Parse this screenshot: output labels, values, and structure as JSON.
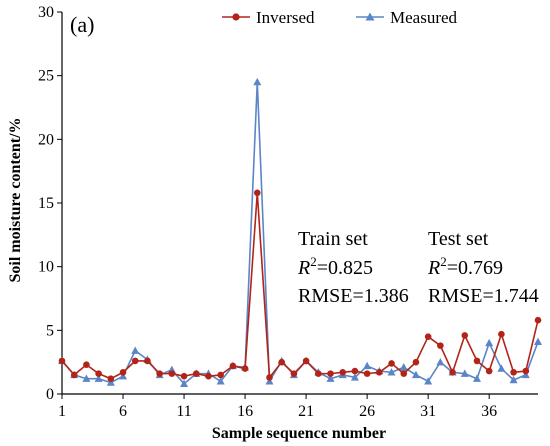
{
  "chart_data": {
    "type": "line",
    "panel_label": "(a)",
    "xlabel": "Sample sequence number",
    "ylabel": "Soil moisture content/%",
    "xlim": [
      1,
      40
    ],
    "ylim": [
      0,
      30
    ],
    "x_ticks": [
      1,
      6,
      11,
      16,
      21,
      26,
      31,
      36
    ],
    "y_ticks": [
      0,
      5,
      10,
      15,
      20,
      25,
      30
    ],
    "grid": false,
    "legend_position": "top-right",
    "x": [
      1,
      2,
      3,
      4,
      5,
      6,
      7,
      8,
      9,
      10,
      11,
      12,
      13,
      14,
      15,
      16,
      17,
      18,
      19,
      20,
      21,
      22,
      23,
      24,
      25,
      26,
      27,
      28,
      29,
      30,
      31,
      32,
      33,
      34,
      35,
      36,
      37,
      38,
      39,
      40
    ],
    "series": [
      {
        "name": "Inversed",
        "color": "#b22418",
        "marker": "circle",
        "values": [
          2.6,
          1.5,
          2.3,
          1.6,
          1.2,
          1.7,
          2.6,
          2.6,
          1.6,
          1.6,
          1.4,
          1.6,
          1.4,
          1.5,
          2.2,
          2.0,
          15.8,
          1.3,
          2.5,
          1.6,
          2.6,
          1.6,
          1.6,
          1.7,
          1.8,
          1.6,
          1.7,
          2.4,
          1.6,
          2.5,
          4.5,
          3.8,
          1.7,
          4.6,
          2.6,
          1.8,
          4.7,
          1.7,
          1.8,
          5.8
        ]
      },
      {
        "name": "Measured",
        "color": "#5b85c6",
        "marker": "triangle",
        "values": [
          2.6,
          1.5,
          1.2,
          1.2,
          0.9,
          1.4,
          3.4,
          2.7,
          1.5,
          1.9,
          0.8,
          1.6,
          1.6,
          1.0,
          2.2,
          2.1,
          24.5,
          1.0,
          2.6,
          1.5,
          2.6,
          1.7,
          1.2,
          1.5,
          1.3,
          2.2,
          1.8,
          1.7,
          2.1,
          1.5,
          1.0,
          2.5,
          1.7,
          1.6,
          1.2,
          4.0,
          2.0,
          1.1,
          1.5,
          4.1
        ]
      }
    ],
    "annotations": {
      "train": {
        "title": "Train set",
        "r2_symbol": "R",
        "r2_sup": "2",
        "r2_value": "=0.825",
        "rmse": "RMSE=1.386"
      },
      "test": {
        "title": "Test set",
        "r2_symbol": "R",
        "r2_sup": "2",
        "r2_value": "=0.769",
        "rmse": "RMSE=1.744"
      }
    }
  }
}
